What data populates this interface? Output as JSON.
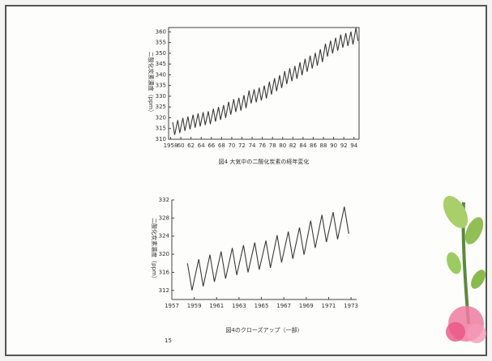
{
  "chart_data": [
    {
      "type": "line",
      "caption": "図4 大気中の二酸化炭素の経年変化",
      "ylabel": "二酸化炭素濃度（ppm）",
      "x": [
        1958.4,
        1958.8,
        1959.4,
        1959.8,
        1960.4,
        1960.8,
        1961.4,
        1961.8,
        1962.4,
        1962.8,
        1963.4,
        1963.8,
        1964.4,
        1964.8,
        1965.4,
        1965.8,
        1966.4,
        1966.8,
        1967.4,
        1967.8,
        1968.4,
        1968.8,
        1969.4,
        1969.8,
        1970.4,
        1970.8,
        1971.4,
        1971.8,
        1972.4,
        1972.8,
        1973.4,
        1973.8,
        1974.4,
        1974.8,
        1975.4,
        1975.8,
        1976.4,
        1976.8,
        1977.4,
        1977.8,
        1978.4,
        1978.8,
        1979.4,
        1979.8,
        1980.4,
        1980.8,
        1981.4,
        1981.8,
        1982.4,
        1982.8,
        1983.4,
        1983.8,
        1984.4,
        1984.8,
        1985.4,
        1985.8,
        1986.4,
        1986.8,
        1987.4,
        1987.8,
        1988.4,
        1988.8,
        1989.4,
        1989.8,
        1990.4,
        1990.8,
        1991.4,
        1991.8,
        1992.4,
        1992.8,
        1993.4,
        1993.8,
        1994.4,
        1994.8
      ],
      "series": [
        {
          "color": "#3a3a3a",
          "values": [
            318.0,
            312.0,
            318.9,
            312.9,
            319.9,
            313.9,
            320.6,
            314.6,
            321.4,
            315.4,
            322.0,
            316.0,
            322.6,
            316.6,
            323.0,
            317.0,
            324.2,
            318.2,
            325.0,
            319.0,
            325.9,
            319.9,
            327.4,
            321.4,
            328.7,
            322.7,
            329.3,
            323.3,
            330.5,
            324.5,
            332.7,
            326.7,
            333.2,
            327.2,
            334.0,
            328.0,
            335.0,
            329.0,
            336.8,
            330.8,
            338.4,
            332.4,
            339.8,
            333.8,
            341.7,
            335.7,
            343.0,
            337.0,
            344.1,
            338.1,
            345.8,
            339.8,
            347.4,
            341.4,
            348.9,
            342.9,
            350.2,
            344.2,
            351.9,
            345.9,
            354.5,
            348.5,
            355.9,
            349.9,
            357.2,
            351.2,
            358.6,
            352.6,
            359.4,
            353.4,
            360.1,
            354.1,
            361.8,
            355.8
          ]
        }
      ],
      "xlim": [
        1957.6,
        1995
      ],
      "xticks": [
        1958,
        {
          "value": 1960,
          "label": "60"
        },
        {
          "value": 1962,
          "label": "62"
        },
        {
          "value": 1964,
          "label": "64"
        },
        {
          "value": 1966,
          "label": "66"
        },
        {
          "value": 1968,
          "label": "68"
        },
        {
          "value": 1970,
          "label": "70"
        },
        {
          "value": 1972,
          "label": "72"
        },
        {
          "value": 1974,
          "label": "74"
        },
        {
          "value": 1976,
          "label": "76"
        },
        {
          "value": 1978,
          "label": "78"
        },
        {
          "value": 1980,
          "label": "80"
        },
        {
          "value": 1982,
          "label": "82"
        },
        {
          "value": 1984,
          "label": "84"
        },
        {
          "value": 1986,
          "label": "86"
        },
        {
          "value": 1988,
          "label": "88"
        },
        {
          "value": 1990,
          "label": "90"
        },
        {
          "value": 1992,
          "label": "92"
        },
        {
          "value": 1994,
          "label": "94"
        }
      ],
      "ylim": [
        310,
        362
      ],
      "yticks": [
        310,
        315,
        320,
        325,
        330,
        335,
        340,
        345,
        350,
        355,
        360
      ]
    },
    {
      "type": "line",
      "caption": "図4のクローズアップ（一部）",
      "ylabel": "二酸化炭素濃度（ppm）",
      "x": [
        1958.4,
        1958.8,
        1959.4,
        1959.8,
        1960.4,
        1960.8,
        1961.4,
        1961.8,
        1962.4,
        1962.8,
        1963.4,
        1963.8,
        1964.4,
        1964.8,
        1965.4,
        1965.8,
        1966.4,
        1966.8,
        1967.4,
        1967.8,
        1968.4,
        1968.8,
        1969.4,
        1969.8,
        1970.4,
        1970.8,
        1971.4,
        1971.8,
        1972.4,
        1972.8
      ],
      "series": [
        {
          "color": "#3a3a3a",
          "values": [
            318.0,
            312.0,
            318.9,
            312.9,
            319.9,
            313.9,
            320.6,
            314.6,
            321.4,
            315.4,
            322.0,
            316.0,
            322.6,
            316.6,
            323.0,
            317.0,
            324.2,
            318.2,
            325.0,
            319.0,
            325.9,
            319.9,
            327.4,
            321.4,
            328.7,
            322.7,
            329.3,
            323.3,
            330.5,
            324.5
          ]
        }
      ],
      "xlim": [
        1957,
        1973.5
      ],
      "xticks": [
        1957,
        1959,
        1961,
        1963,
        1965,
        1967,
        1969,
        1971,
        1973
      ],
      "ylim": [
        310,
        332
      ],
      "yticks": [
        312,
        316,
        320,
        324,
        328,
        332
      ]
    }
  ],
  "page_number": "15"
}
